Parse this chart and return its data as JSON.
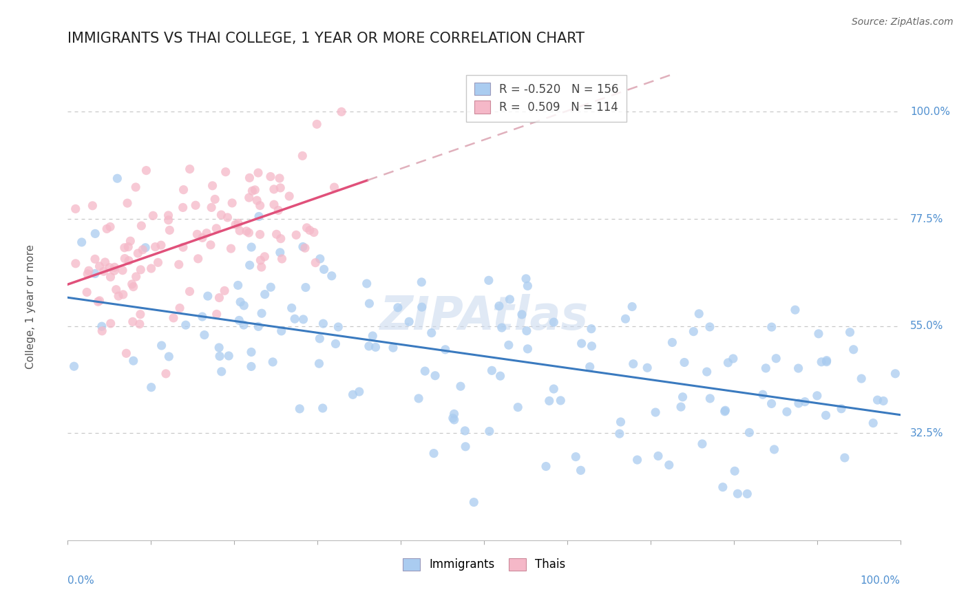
{
  "title": "IMMIGRANTS VS THAI COLLEGE, 1 YEAR OR MORE CORRELATION CHART",
  "source": "Source: ZipAtlas.com",
  "ylabel": "College, 1 year or more",
  "xlabel": "",
  "xlim": [
    0.0,
    1.0
  ],
  "ylim": [
    0.1,
    1.08
  ],
  "ytick_labels": [
    "32.5%",
    "55.0%",
    "77.5%",
    "100.0%"
  ],
  "ytick_positions": [
    0.325,
    0.55,
    0.775,
    1.0
  ],
  "legend_label_imm": "R = -0.520   N = 156",
  "legend_label_thai": "R =  0.509   N = 114",
  "immigrants_color": "#aaccf0",
  "thais_color": "#f5b8c8",
  "immigrants_line_color": "#3a7abf",
  "thais_line_color": "#e0507a",
  "thais_line_dashed_color": "#e0b0bc",
  "watermark": "ZIPAtlas",
  "immigrants_R": -0.52,
  "immigrants_N": 156,
  "thais_R": 0.509,
  "thais_N": 114,
  "background_color": "#ffffff",
  "grid_color": "#c8c8c8",
  "title_color": "#222222",
  "axis_label_color": "#5090d0",
  "title_fontsize": 15,
  "label_fontsize": 11,
  "source_fontsize": 10,
  "watermark_fontsize": 48,
  "scatter_size": 90,
  "scatter_alpha": 0.75
}
